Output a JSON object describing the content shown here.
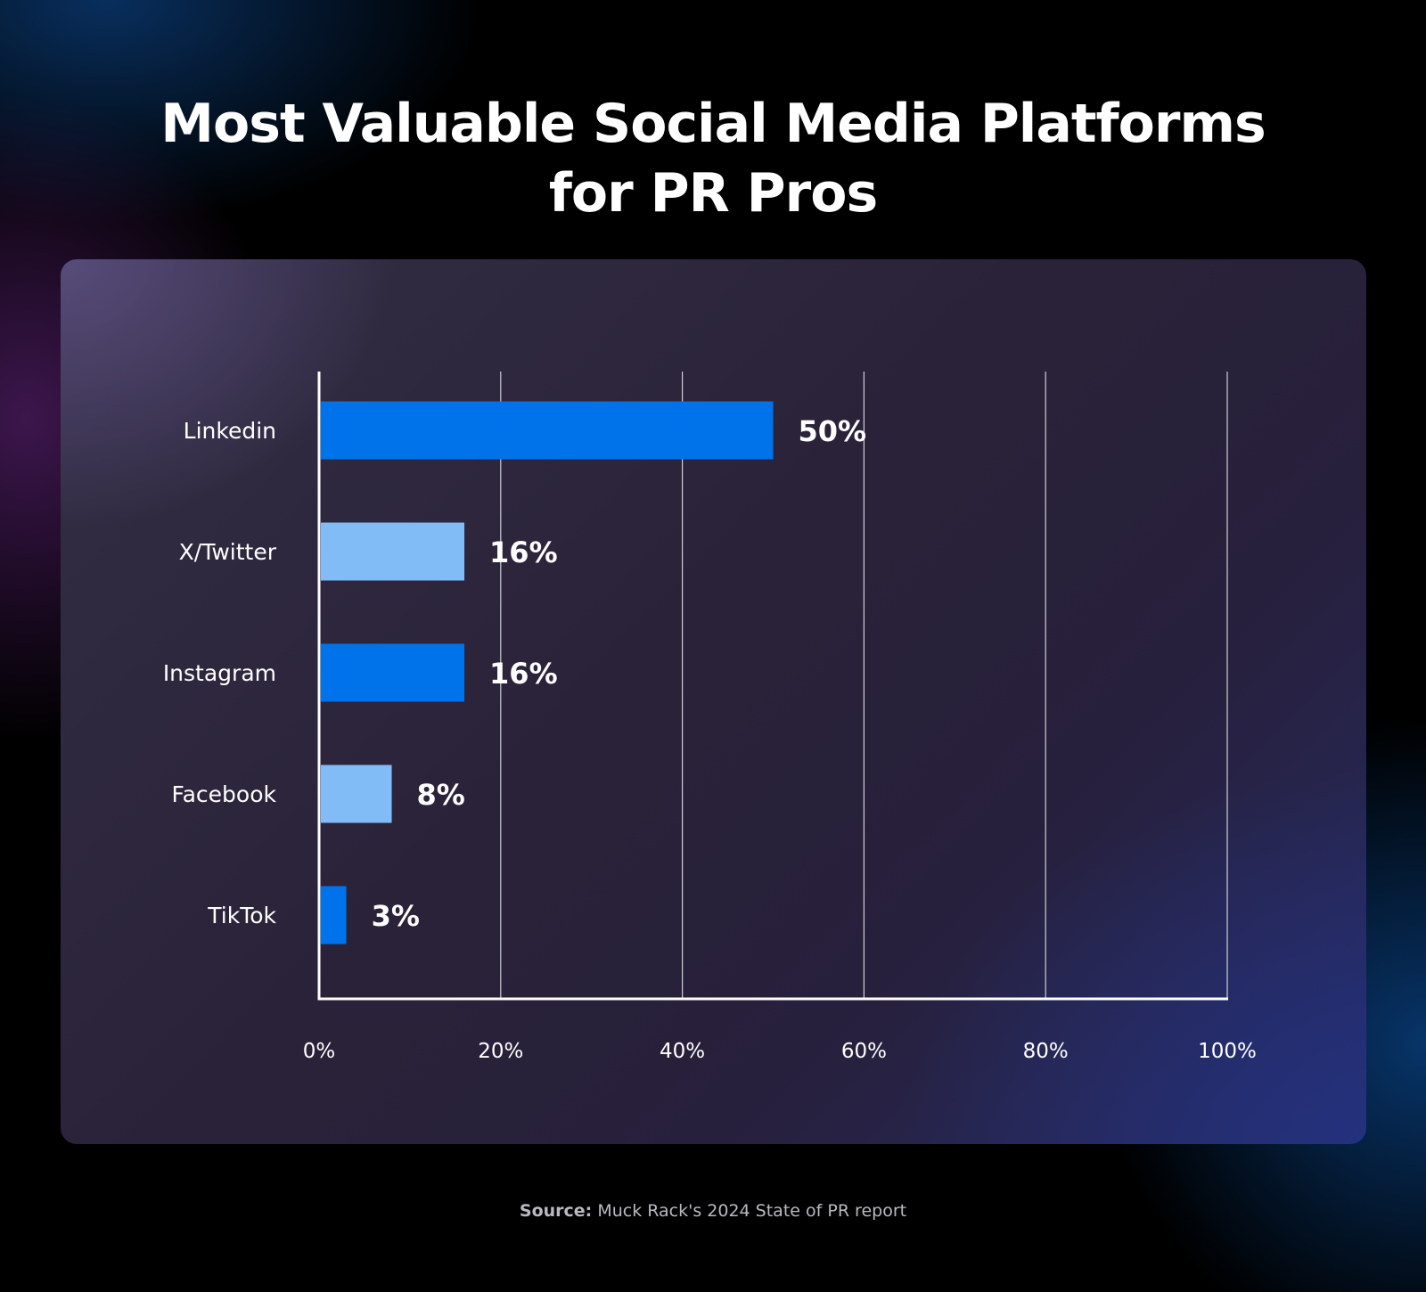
{
  "title_lines": [
    "Most Valuable Social Media Platforms",
    "for PR Pros"
  ],
  "source": {
    "prefix": "Source:",
    "text": " Muck Rack's 2024 State of PR report"
  },
  "colors": {
    "bar_dark": "#0073ea",
    "bar_light": "#82bcf7",
    "axis": "#ffffff",
    "grid": "#cfcfd6"
  },
  "chart_data": {
    "type": "bar",
    "orientation": "horizontal",
    "title": "Most Valuable Social Media Platforms for PR Pros",
    "categories": [
      "Linkedin",
      "X/Twitter",
      "Instagram",
      "Facebook",
      "TikTok"
    ],
    "values": [
      50,
      16,
      16,
      8,
      3
    ],
    "value_labels": [
      "50%",
      "16%",
      "16%",
      "8%",
      "3%"
    ],
    "bar_colors": [
      "#0073ea",
      "#82bcf7",
      "#0073ea",
      "#82bcf7",
      "#0073ea"
    ],
    "xlim": [
      0,
      100
    ],
    "xticks": [
      0,
      20,
      40,
      60,
      80,
      100
    ],
    "xtick_labels": [
      "0%",
      "20%",
      "40%",
      "60%",
      "80%",
      "100%"
    ],
    "xlabel": "",
    "ylabel": "",
    "grid": "vertical"
  }
}
